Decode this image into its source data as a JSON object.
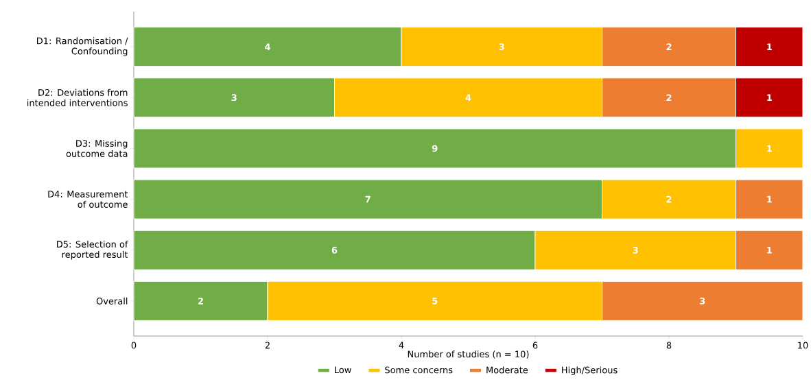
{
  "chart_data": {
    "type": "bar",
    "orientation": "horizontal",
    "stacked": true,
    "categories": [
      "D1: Randomisation /\nConfounding",
      "D2: Deviations from\nintended interventions",
      "D3: Missing\noutcome data",
      "D4: Measurement\nof outcome",
      "D5: Selection of\nreported result",
      "Overall"
    ],
    "series": [
      {
        "name": "Low",
        "color": "#70ad47",
        "values": [
          4,
          3,
          9,
          7,
          6,
          2
        ]
      },
      {
        "name": "Some concerns",
        "color": "#ffc000",
        "values": [
          3,
          4,
          1,
          2,
          3,
          5
        ]
      },
      {
        "name": "Moderate",
        "color": "#ed7d31",
        "values": [
          2,
          2,
          null,
          1,
          1,
          3
        ]
      },
      {
        "name": "High/Serious",
        "color": "#c00000",
        "values": [
          1,
          1,
          null,
          null,
          null,
          null
        ]
      }
    ],
    "xlabel": "Number of studies (n = 10)",
    "xlim": [
      0,
      10
    ],
    "xticks": [
      0,
      2,
      4,
      6,
      8,
      10
    ],
    "data_labels": true,
    "legend": "bottom",
    "grid": false
  }
}
